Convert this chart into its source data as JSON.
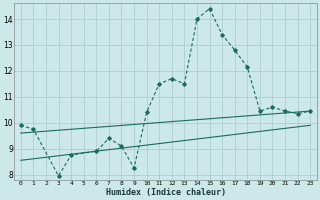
{
  "xlabel": "Humidex (Indice chaleur)",
  "bg_color": "#cce8e8",
  "grid_color": "#aacfcf",
  "line_color": "#1a6b5e",
  "xlim": [
    -0.5,
    23.5
  ],
  "ylim": [
    7.8,
    14.6
  ],
  "yticks": [
    8,
    9,
    10,
    11,
    12,
    13,
    14
  ],
  "xticks": [
    0,
    1,
    2,
    3,
    4,
    5,
    6,
    7,
    8,
    9,
    10,
    11,
    12,
    13,
    14,
    15,
    16,
    17,
    18,
    19,
    20,
    21,
    22,
    23
  ],
  "curve1_x": [
    0,
    1,
    3,
    4,
    6,
    7,
    8,
    9,
    10,
    11,
    12,
    13,
    14,
    15,
    16,
    17,
    18,
    19,
    20,
    21,
    22,
    23
  ],
  "curve1_y": [
    9.9,
    9.75,
    7.95,
    8.75,
    8.9,
    9.4,
    9.1,
    8.25,
    10.4,
    11.5,
    11.7,
    11.5,
    14.0,
    14.4,
    13.4,
    12.8,
    12.15,
    10.45,
    10.6,
    10.45,
    10.35,
    10.45
  ],
  "line1_x": [
    0,
    23
  ],
  "line1_y": [
    9.6,
    10.45
  ],
  "line2_x": [
    0,
    23
  ],
  "line2_y": [
    8.55,
    9.9
  ]
}
